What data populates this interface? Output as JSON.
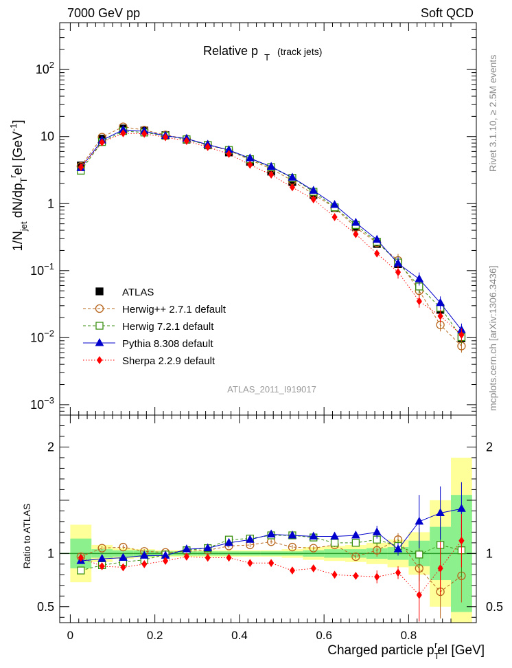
{
  "header": {
    "left": "7000 GeV pp",
    "right": "Soft QCD",
    "title_main": "Relative p",
    "title_sub": "T",
    "title_tail": "(track jets)",
    "watermark": "ATLAS_2011_I919017",
    "side_top": "Rivet 3.1.10, ≥ 2.5M events",
    "side_bottom": "mcplots.cern.ch [arXiv:1306.3436]"
  },
  "axes": {
    "ylabel_parts": [
      "1/N",
      "jet",
      " dN/dp",
      "T",
      "r",
      "el [GeV",
      "-1",
      "]"
    ],
    "xlabel_parts": [
      "Charged particle p",
      "T",
      "r",
      "el [GeV]"
    ],
    "ratio_ylabel": "Ratio to ATLAS"
  },
  "legend": [
    {
      "key": "atlas",
      "label": "ATLAS"
    },
    {
      "key": "herwigpp",
      "label": "Herwig++ 2.7.1 default"
    },
    {
      "key": "herwig7",
      "label": "Herwig 7.2.1 default"
    },
    {
      "key": "pythia",
      "label": "Pythia 8.308 default"
    },
    {
      "key": "sherpa",
      "label": "Sherpa 2.2.9 default"
    }
  ],
  "colors": {
    "atlas": "#000000",
    "herwigpp": "#b8651b",
    "herwig7": "#3a8f10",
    "pythia": "#0000cc",
    "sherpa": "#ff0000",
    "band_inner": "#8cf08c",
    "band_outer": "#ffff99"
  },
  "chart_data": {
    "type": "line",
    "x": [
      0.025,
      0.075,
      0.125,
      0.175,
      0.225,
      0.275,
      0.325,
      0.375,
      0.425,
      0.475,
      0.525,
      0.575,
      0.625,
      0.675,
      0.725,
      0.775,
      0.825,
      0.875,
      0.925
    ],
    "xlim": [
      -0.025,
      0.96
    ],
    "xticks": [
      "0",
      "0.2",
      "0.4",
      "0.6",
      "0.8"
    ],
    "ylim": [
      0.0007,
      500
    ],
    "yscale": "log",
    "yticks": [
      "10^-3",
      "10^-2",
      "10^-1",
      "1",
      "10",
      "10^2"
    ],
    "series": [
      {
        "name": "ATLAS",
        "key": "atlas",
        "values": [
          3.7,
          9.3,
          13.2,
          12.3,
          10.5,
          9.0,
          7.4,
          5.8,
          4.2,
          3.0,
          2.1,
          1.35,
          0.86,
          0.45,
          0.25,
          0.125,
          0.058,
          0.026,
          0.0098
        ]
      },
      {
        "name": "Herwig++ 2.7.1 default",
        "key": "herwigpp",
        "values": [
          3.6,
          9.8,
          14.0,
          12.5,
          10.6,
          9.2,
          7.5,
          6.2,
          4.5,
          3.3,
          2.2,
          1.38,
          0.87,
          0.44,
          0.26,
          0.142,
          0.05,
          0.0155,
          0.0075
        ]
      },
      {
        "name": "Herwig 7.2.1 default",
        "key": "herwig7",
        "values": [
          3.1,
          8.3,
          12.1,
          11.5,
          10.3,
          9.1,
          7.5,
          6.3,
          4.6,
          3.5,
          2.42,
          1.5,
          0.88,
          0.48,
          0.27,
          0.132,
          0.058,
          0.028,
          0.0102
        ]
      },
      {
        "name": "Pythia 8.308 default",
        "key": "pythia",
        "values": [
          3.4,
          8.8,
          12.6,
          12.0,
          10.3,
          9.3,
          7.6,
          6.3,
          4.75,
          3.55,
          2.45,
          1.56,
          0.96,
          0.52,
          0.29,
          0.128,
          0.075,
          0.033,
          0.013
        ]
      },
      {
        "name": "Sherpa 2.2.9 default",
        "key": "sherpa",
        "values": [
          3.5,
          8.2,
          11.2,
          11.0,
          9.8,
          8.6,
          7.0,
          5.5,
          3.8,
          2.7,
          1.75,
          1.16,
          0.63,
          0.35,
          0.18,
          0.095,
          0.035,
          0.021,
          0.011
        ]
      }
    ],
    "ratio": {
      "ylabel": "Ratio to ATLAS",
      "ylim": [
        0.35,
        2.3
      ],
      "yticks": [
        "0.5",
        "1",
        "2"
      ],
      "band_inner": [
        0.14,
        0.04,
        0.03,
        0.03,
        0.02,
        0.02,
        0.02,
        0.02,
        0.02,
        0.02,
        0.02,
        0.03,
        0.04,
        0.04,
        0.05,
        0.06,
        0.12,
        0.25,
        0.55
      ],
      "band_outer": [
        0.27,
        0.08,
        0.05,
        0.04,
        0.03,
        0.03,
        0.03,
        0.03,
        0.03,
        0.03,
        0.04,
        0.06,
        0.07,
        0.08,
        0.1,
        0.13,
        0.2,
        0.5,
        0.9
      ],
      "series": [
        {
          "name": "Herwig++ 2.7.1 default",
          "key": "herwigpp",
          "values": [
            0.97,
            1.05,
            1.06,
            1.02,
            1.01,
            1.02,
            1.03,
            1.07,
            1.08,
            1.11,
            1.06,
            1.05,
            1.08,
            0.97,
            1.03,
            1.13,
            0.86,
            0.64,
            0.79
          ]
        },
        {
          "name": "Herwig 7.2.1 default",
          "key": "herwig7",
          "values": [
            0.84,
            0.89,
            0.92,
            0.94,
            0.99,
            1.03,
            1.05,
            1.13,
            1.14,
            1.17,
            1.17,
            1.15,
            1.1,
            1.1,
            1.13,
            1.07,
            0.99,
            1.08,
            1.03
          ]
        },
        {
          "name": "Pythia 8.308 default",
          "key": "pythia",
          "values": [
            0.93,
            0.95,
            0.96,
            0.98,
            0.98,
            1.04,
            1.05,
            1.1,
            1.13,
            1.18,
            1.17,
            1.16,
            1.16,
            1.17,
            1.2,
            1.04,
            1.3,
            1.38,
            1.42
          ]
        },
        {
          "name": "Sherpa 2.2.9 default",
          "key": "sherpa",
          "values": [
            0.96,
            0.88,
            0.87,
            0.9,
            0.93,
            0.97,
            0.96,
            0.96,
            0.91,
            0.91,
            0.84,
            0.86,
            0.8,
            0.79,
            0.78,
            0.82,
            0.61,
            0.86,
            1.12
          ]
        }
      ]
    }
  }
}
